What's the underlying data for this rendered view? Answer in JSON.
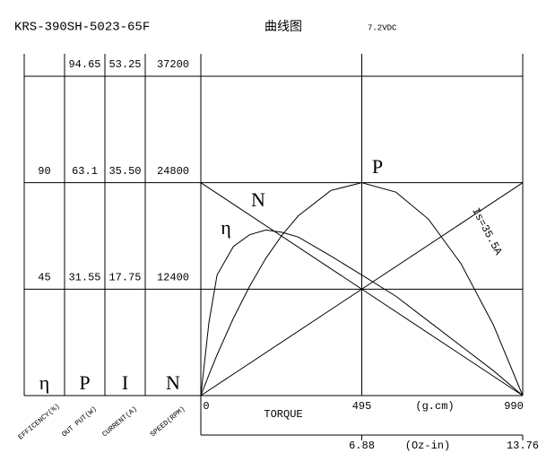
{
  "chart_data": {
    "type": "motor-curve",
    "title": "KRS-390SH-5023-65F",
    "subtitle": "曲线图",
    "voltage": "7.2VDC",
    "xlabel": "TORQUE",
    "xunit": "(g.cm)",
    "xlim": [
      0,
      990
    ],
    "xticks": [
      0,
      495,
      990
    ],
    "x2unit": "(Oz-in)",
    "x2lim": [
      0,
      13.76
    ],
    "x2ticks": [
      6.88,
      13.76
    ],
    "scales": [
      {
        "symbol": "η",
        "name": "EFFICENCY(%)",
        "ylim": [
          0,
          135
        ],
        "ticks": [
          45,
          90
        ]
      },
      {
        "symbol": "P",
        "name": "OUT PUT(W)",
        "ylim": [
          0,
          94.65
        ],
        "ticks": [
          31.55,
          63.1,
          94.65
        ]
      },
      {
        "symbol": "I",
        "name": "CURRENT(A)",
        "ylim": [
          0,
          53.25
        ],
        "ticks": [
          17.75,
          {
            "value": 35.5,
            "label": "35.50"
          },
          53.25
        ]
      },
      {
        "symbol": "N",
        "name": "SPEED(RPM)",
        "ylim": [
          0,
          37200
        ],
        "ticks": [
          12400,
          24800,
          37200
        ]
      }
    ],
    "series": [
      {
        "name": "η",
        "scale": 0,
        "color": "#000000",
        "x": [
          0,
          25,
          50,
          100,
          150,
          200,
          250,
          300,
          400,
          495,
          600,
          700,
          800,
          900,
          990
        ],
        "values": [
          0,
          31,
          51,
          63,
          68,
          70,
          69,
          67,
          59,
          51,
          42,
          31.5,
          21,
          10.5,
          0
        ]
      },
      {
        "name": "P",
        "scale": 1,
        "color": "#000000",
        "x": [
          0,
          25,
          50,
          100,
          150,
          200,
          250,
          300,
          400,
          495,
          600,
          700,
          800,
          900,
          990
        ],
        "values": [
          0,
          6.2,
          12.1,
          22.9,
          32.4,
          40.7,
          47.6,
          53.3,
          60.8,
          63.1,
          60.3,
          52.3,
          39.1,
          20.9,
          0
        ]
      },
      {
        "name": "Is=35.5A",
        "scale": 2,
        "color": "#000000",
        "x": [
          0,
          990
        ],
        "values": [
          0,
          35.5
        ]
      },
      {
        "name": "N",
        "scale": 3,
        "color": "#000000",
        "x": [
          0,
          990
        ],
        "values": [
          24800,
          0
        ]
      }
    ]
  }
}
